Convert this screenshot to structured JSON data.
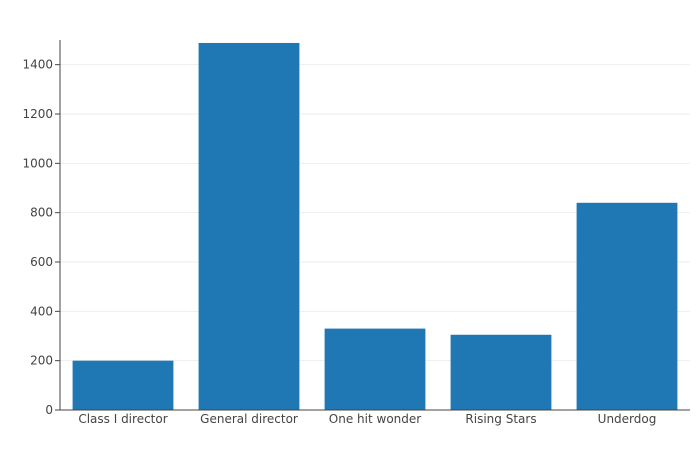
{
  "chart_data": {
    "type": "bar",
    "categories": [
      "Class I director",
      "General director",
      "One hit wonder",
      "Rising Stars",
      "Underdog"
    ],
    "values": [
      200,
      1488,
      330,
      305,
      840
    ],
    "ylim": [
      0,
      1500
    ],
    "yticks": [
      0,
      200,
      400,
      600,
      800,
      1000,
      1200,
      1400
    ],
    "grid": true,
    "bar_color": "#1f77b4",
    "grid_color": "#eeeeee",
    "axis_color": "#444444"
  }
}
